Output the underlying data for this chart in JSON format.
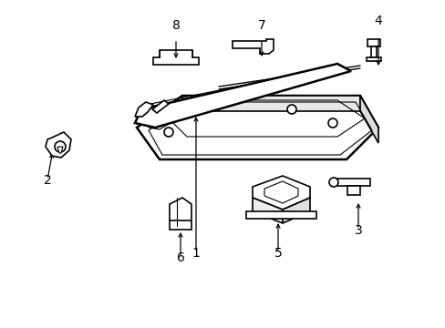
{
  "background_color": "#ffffff",
  "line_color": "#000000",
  "lw": 1.2,
  "lw_thick": 1.8,
  "lw_thin": 0.8,
  "fontsize": 10
}
